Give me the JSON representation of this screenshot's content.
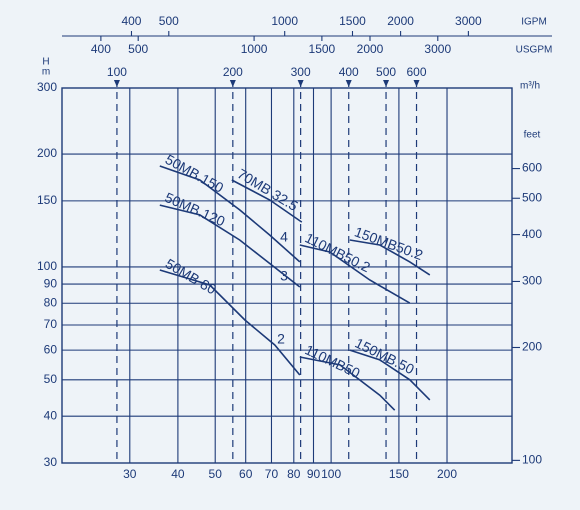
{
  "chart_data": {
    "type": "line",
    "xlog": true,
    "ylog": true,
    "grid": true,
    "color": "#1d3a78",
    "xlim": [
      20,
      295
    ],
    "xticks": [
      30,
      40,
      50,
      60,
      70,
      80,
      90,
      100,
      150,
      200
    ],
    "ylabel": [
      "H",
      "m"
    ],
    "ylim": [
      30,
      300
    ],
    "yticks": [
      30,
      40,
      50,
      60,
      70,
      80,
      90,
      100,
      150,
      200,
      300
    ],
    "y2label": "feet",
    "y2lim": [
      98.4,
      984
    ],
    "y2ticks": [
      100,
      200,
      300,
      400,
      500,
      600
    ],
    "top_axes": [
      {
        "label": "IGPM",
        "xlim": [
          264,
          3894
        ],
        "xticks": [
          400,
          500,
          1000,
          1500,
          2000,
          3000
        ]
      },
      {
        "label": "USGPM",
        "xlim": [
          317,
          4676
        ],
        "xticks": [
          400,
          500,
          1000,
          1500,
          2000,
          3000
        ]
      },
      {
        "label": "m³/h",
        "xlim": [
          72,
          1062
        ],
        "xticks": [
          100,
          200,
          300,
          400,
          500,
          600
        ]
      }
    ],
    "series": [
      {
        "name": "50MB.150",
        "x": [
          35.9,
          45.6,
          57.9,
          69.3,
          82.9
        ],
        "values": [
          185.8,
          170.5,
          141.9,
          121.6,
          103.1
        ]
      },
      {
        "name": "70MB 32.5",
        "x": [
          55.2,
          69.3,
          83.9
        ],
        "values": [
          170.5,
          150.8,
          131.7
        ]
      },
      {
        "name": "50MB.120",
        "x": [
          35.9,
          45.6,
          57.9,
          82.9
        ],
        "values": [
          146.2,
          137.6,
          118,
          88.4
        ]
      },
      {
        "name": "50MB 80",
        "x": [
          35.9,
          48.4,
          59.7,
          71.4,
          82.9
        ],
        "values": [
          98.1,
          89.5,
          72.2,
          61.9,
          51.5
        ]
      },
      {
        "name": "110MB50.2",
        "x": [
          82.9,
          99.2,
          126,
          160.1
        ],
        "values": [
          114.4,
          109.6,
          92.3,
          80.1
        ]
      },
      {
        "name": "110MB50",
        "x": [
          82.9,
          105.4,
          133.8,
          146.3
        ],
        "values": [
          57.5,
          54.8,
          45.5,
          41.5
        ]
      },
      {
        "name": "150MB50.2",
        "x": [
          111.8,
          133.8,
          160.1,
          180.4
        ],
        "values": [
          118,
          114.4,
          103.1,
          95.2
        ]
      },
      {
        "name": "150MB.50",
        "x": [
          111.8,
          133.8,
          160.1,
          180.4
        ],
        "values": [
          60,
          56.5,
          50,
          44.2
        ]
      }
    ],
    "annotations": [
      "4",
      "3",
      "2"
    ]
  }
}
